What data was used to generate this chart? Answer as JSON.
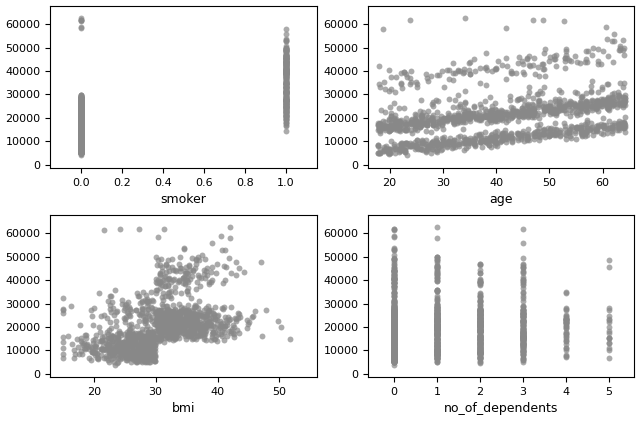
{
  "figure_size": [
    6.4,
    4.21
  ],
  "dpi": 100,
  "background_color": "#ffffff",
  "dot_color": "#888888",
  "dot_size": 18,
  "dot_alpha": 0.7,
  "subplots": [
    {
      "xlabel": "smoker",
      "xlim": [
        -0.15,
        1.15
      ],
      "ylim": [
        -1500,
        68000
      ],
      "xticks": [
        0.0,
        0.2,
        0.4,
        0.6,
        0.8,
        1.0
      ],
      "yticks": [
        0,
        10000,
        20000,
        30000,
        40000,
        50000,
        60000
      ]
    },
    {
      "xlabel": "age",
      "xlim": [
        16,
        66
      ],
      "ylim": [
        -1500,
        68000
      ],
      "xticks": [
        20,
        30,
        40,
        50,
        60
      ],
      "yticks": [
        0,
        10000,
        20000,
        30000,
        40000,
        50000,
        60000
      ]
    },
    {
      "xlabel": "bmi",
      "xlim": [
        13,
        56
      ],
      "ylim": [
        -1500,
        68000
      ],
      "xticks": [
        20,
        30,
        40,
        50
      ],
      "yticks": [
        0,
        10000,
        20000,
        30000,
        40000,
        50000,
        60000
      ]
    },
    {
      "xlabel": "no_of_dependents",
      "xlim": [
        -0.6,
        5.6
      ],
      "ylim": [
        -1500,
        68000
      ],
      "xticks": [
        0,
        1,
        2,
        3,
        4,
        5
      ],
      "yticks": [
        0,
        10000,
        20000,
        30000,
        40000,
        50000,
        60000
      ]
    }
  ],
  "n_samples": 1338,
  "seed": 7
}
